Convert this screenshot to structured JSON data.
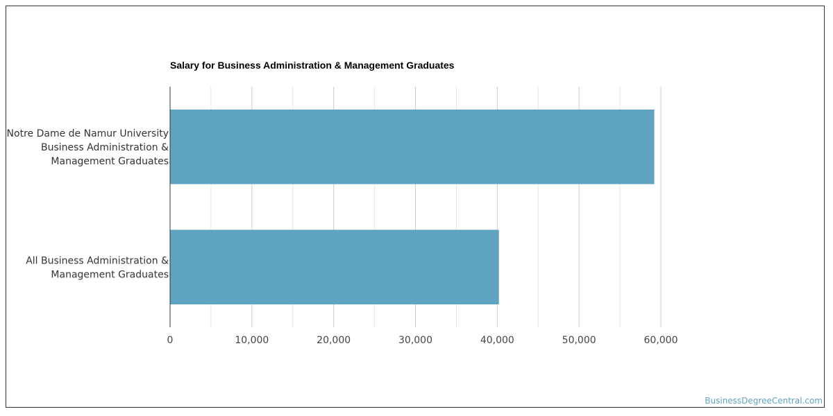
{
  "chart_data": {
    "type": "bar",
    "orientation": "horizontal",
    "title": "Salary for Business Administration & Management Graduates",
    "categories": [
      [
        "Notre Dame de Namur University",
        "Business Administration &",
        "Management Graduates"
      ],
      [
        "All Business Administration &",
        "Management Graduates"
      ]
    ],
    "values": [
      59200,
      40200
    ],
    "xlim": [
      0,
      60000
    ],
    "ticks": [
      0,
      10000,
      20000,
      30000,
      40000,
      50000,
      60000
    ],
    "tick_labels": [
      "0",
      "10,000",
      "20,000",
      "30,000",
      "40,000",
      "50,000",
      "60,000"
    ],
    "bar_color": "#5ea3c1",
    "grid": true
  },
  "watermark": "BusinessDegreeCentral.com"
}
